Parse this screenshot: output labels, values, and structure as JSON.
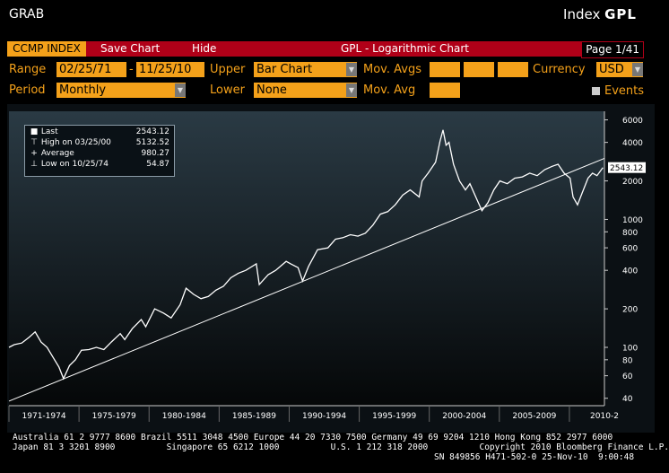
{
  "header": {
    "left": "GRAB",
    "index_label": "Index",
    "ticker": "GPL"
  },
  "toolbar": {
    "ccmp": "CCMP INDEX",
    "save_chart": "Save Chart",
    "hide": "Hide",
    "title": "GPL - Logarithmic Chart",
    "page": "Page 1/41"
  },
  "controls": {
    "range_label": "Range",
    "range_start": "02/25/71",
    "range_sep": "-",
    "range_end": "11/25/10",
    "upper_label": "Upper",
    "upper_value": "Bar Chart",
    "mov_avgs_label": "Mov. Avgs",
    "currency_label": "Currency",
    "currency_value": "USD",
    "period_label": "Period",
    "period_value": "Monthly",
    "lower_label": "Lower",
    "lower_value": "None",
    "mov_avg_label": "Mov. Avg",
    "events_label": "Events"
  },
  "legend": {
    "last_label": "Last",
    "last_value": "2543.12",
    "high_label": "High on 03/25/00",
    "high_value": "5132.52",
    "avg_label": "Average",
    "avg_value": "980.27",
    "low_label": "Low on 10/25/74",
    "low_value": "54.87"
  },
  "last_price_tag": "2543.12",
  "chart_data": {
    "type": "line",
    "scale": "log",
    "title": "GPL - Logarithmic Chart",
    "y_ticks": [
      40,
      60,
      80,
      100,
      200,
      400,
      600,
      800,
      1000,
      2000,
      4000,
      6000
    ],
    "ylim": [
      35,
      7000
    ],
    "x_labels": [
      "1971-1974",
      "1975-1979",
      "1980-1984",
      "1985-1989",
      "1990-1994",
      "1995-1999",
      "2000-2004",
      "2005-2009",
      "2010-2"
    ],
    "xlim": [
      1971.15,
      2011.0
    ],
    "series": [
      {
        "x": [
          1971.15,
          1971.5,
          1972.0,
          1972.5,
          1972.9,
          1973.3,
          1973.7,
          1974.2,
          1974.5,
          1974.8,
          1975.2,
          1975.6,
          1976.0,
          1976.5,
          1977.0,
          1977.5,
          1978.0,
          1978.6,
          1978.9,
          1979.4,
          1980.0,
          1980.3,
          1980.9,
          1981.5,
          1982.0,
          1982.6,
          1983.0,
          1983.5,
          1984.0,
          1984.5,
          1985.0,
          1985.5,
          1986.0,
          1986.5,
          1987.0,
          1987.7,
          1987.9,
          1988.5,
          1989.0,
          1989.7,
          1990.0,
          1990.5,
          1990.8,
          1991.2,
          1991.8,
          1992.5,
          1993.0,
          1993.5,
          1994.0,
          1994.5,
          1995.0,
          1995.5,
          1996.0,
          1996.5,
          1997.0,
          1997.5,
          1998.0,
          1998.6,
          1998.8,
          1999.2,
          1999.7,
          2000.0,
          2000.2,
          2000.4,
          2000.6,
          2000.9,
          2001.3,
          2001.7,
          2002.0,
          2002.5,
          2002.8,
          2003.2,
          2003.6,
          2004.0,
          2004.5,
          2005.0,
          2005.5,
          2006.0,
          2006.5,
          2007.0,
          2007.5,
          2007.9,
          2008.3,
          2008.7,
          2008.9,
          2009.2,
          2009.5,
          2009.9,
          2010.2,
          2010.5,
          2010.9
        ],
        "y": [
          100,
          105,
          108,
          120,
          132,
          110,
          100,
          80,
          70,
          57,
          72,
          80,
          95,
          96,
          100,
          96,
          110,
          128,
          115,
          140,
          165,
          145,
          200,
          185,
          170,
          215,
          290,
          260,
          240,
          250,
          280,
          300,
          350,
          380,
          400,
          450,
          310,
          370,
          400,
          470,
          450,
          420,
          330,
          430,
          580,
          600,
          700,
          720,
          760,
          740,
          780,
          900,
          1100,
          1150,
          1300,
          1550,
          1700,
          1500,
          2000,
          2300,
          2800,
          4100,
          5000,
          3800,
          4000,
          2700,
          2000,
          1700,
          1900,
          1400,
          1170,
          1350,
          1700,
          2000,
          1900,
          2100,
          2150,
          2300,
          2200,
          2450,
          2600,
          2700,
          2300,
          2100,
          1500,
          1300,
          1600,
          2100,
          2300,
          2200,
          2543
        ]
      }
    ],
    "trendline": {
      "x": [
        1971.15,
        2011.0
      ],
      "y": [
        38,
        3000
      ]
    },
    "legend_position": "top-left",
    "grid": false
  },
  "footer": {
    "line1": "Australia 61 2 9777 8600 Brazil 5511 3048 4500 Europe 44 20 7330 7500 Germany 49 69 9204 1210 Hong Kong 852 2977 6000",
    "line2": "Japan 81 3 3201 8900          Singapore 65 6212 1000          U.S. 1 212 318 2000          Copyright 2010 Bloomberg Finance L.P.",
    "line3": "SN 849856 H471-502-0 25-Nov-10  9:00:48"
  },
  "colors": {
    "orange": "#f4a11a",
    "red": "#b00018",
    "chart_bg": "#0b1014",
    "line": "#ffffff"
  }
}
